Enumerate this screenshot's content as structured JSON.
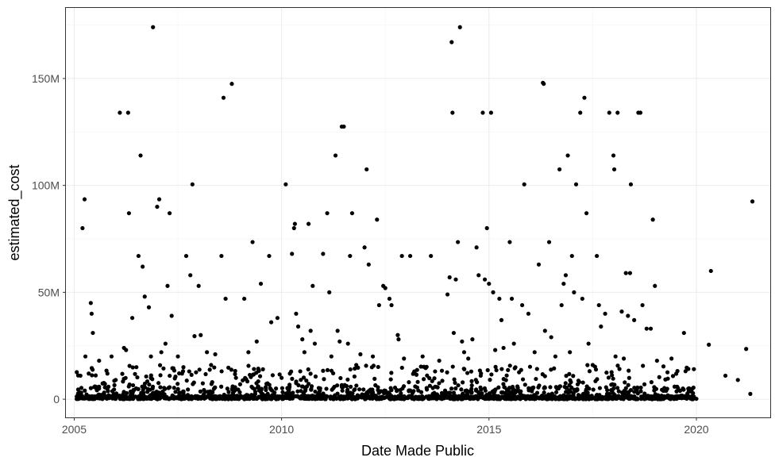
{
  "chart_data": {
    "type": "scatter",
    "xlabel": "Date Made Public",
    "ylabel": "estimated_cost",
    "xlim": [
      2004.8,
      2021.8
    ],
    "ylim": [
      -8500000,
      183000000
    ],
    "x_ticks": [
      2005,
      2010,
      2015,
      2020
    ],
    "x_tick_labels": [
      "2005",
      "2010",
      "2015",
      "2020"
    ],
    "y_ticks": [
      0,
      50000000,
      100000000,
      150000000
    ],
    "y_tick_labels": [
      "0",
      "50M",
      "100M",
      "150M"
    ],
    "grid": true,
    "legend": "none",
    "point_color": "#000000",
    "points": [
      [
        2005.1,
        2000000
      ],
      [
        2005.15,
        11000000
      ],
      [
        2005.2,
        80000000
      ],
      [
        2005.25,
        93500000
      ],
      [
        2005.27,
        20000000
      ],
      [
        2005.35,
        12000000
      ],
      [
        2005.4,
        45000000
      ],
      [
        2005.42,
        40000000
      ],
      [
        2005.45,
        31000000
      ],
      [
        2005.5,
        6000000
      ],
      [
        2005.6,
        18000000
      ],
      [
        2005.8,
        12000000
      ],
      [
        2005.9,
        20000000
      ],
      [
        2006.0,
        9000000
      ],
      [
        2006.1,
        134000000
      ],
      [
        2006.2,
        24000000
      ],
      [
        2006.25,
        23000000
      ],
      [
        2006.3,
        134000000
      ],
      [
        2006.32,
        87000000
      ],
      [
        2006.4,
        38000000
      ],
      [
        2006.5,
        15000000
      ],
      [
        2006.55,
        67000000
      ],
      [
        2006.6,
        114000000
      ],
      [
        2006.65,
        62000000
      ],
      [
        2006.7,
        48000000
      ],
      [
        2006.8,
        43000000
      ],
      [
        2006.85,
        20000000
      ],
      [
        2006.9,
        174000000
      ],
      [
        2007.0,
        90000000
      ],
      [
        2007.05,
        93500000
      ],
      [
        2007.1,
        22000000
      ],
      [
        2007.2,
        26000000
      ],
      [
        2007.25,
        53000000
      ],
      [
        2007.3,
        87000000
      ],
      [
        2007.35,
        39000000
      ],
      [
        2007.5,
        20000000
      ],
      [
        2007.6,
        12000000
      ],
      [
        2007.7,
        67000000
      ],
      [
        2007.8,
        58000000
      ],
      [
        2007.85,
        100500000
      ],
      [
        2007.9,
        29500000
      ],
      [
        2008.0,
        53000000
      ],
      [
        2008.05,
        30000000
      ],
      [
        2008.2,
        22000000
      ],
      [
        2008.3,
        16000000
      ],
      [
        2008.4,
        21000000
      ],
      [
        2008.55,
        67000000
      ],
      [
        2008.6,
        141000000
      ],
      [
        2008.65,
        47000000
      ],
      [
        2008.8,
        147500000
      ],
      [
        2008.9,
        10000000
      ],
      [
        2009.0,
        7000000
      ],
      [
        2009.1,
        47000000
      ],
      [
        2009.2,
        22000000
      ],
      [
        2009.3,
        73500000
      ],
      [
        2009.4,
        27000000
      ],
      [
        2009.5,
        54000000
      ],
      [
        2009.55,
        14000000
      ],
      [
        2009.7,
        67000000
      ],
      [
        2009.75,
        36000000
      ],
      [
        2009.9,
        38000000
      ],
      [
        2010.0,
        10000000
      ],
      [
        2010.1,
        100500000
      ],
      [
        2010.2,
        12000000
      ],
      [
        2010.25,
        68000000
      ],
      [
        2010.3,
        80000000
      ],
      [
        2010.32,
        82000000
      ],
      [
        2010.35,
        40000000
      ],
      [
        2010.4,
        34000000
      ],
      [
        2010.5,
        28000000
      ],
      [
        2010.55,
        22000000
      ],
      [
        2010.65,
        82000000
      ],
      [
        2010.7,
        32000000
      ],
      [
        2010.75,
        53000000
      ],
      [
        2010.8,
        26000000
      ],
      [
        2011.0,
        68000000
      ],
      [
        2011.1,
        87000000
      ],
      [
        2011.15,
        50000000
      ],
      [
        2011.2,
        20000000
      ],
      [
        2011.3,
        114000000
      ],
      [
        2011.35,
        32000000
      ],
      [
        2011.4,
        27000000
      ],
      [
        2011.45,
        127500000
      ],
      [
        2011.5,
        127500000
      ],
      [
        2011.6,
        26000000
      ],
      [
        2011.65,
        67000000
      ],
      [
        2011.7,
        87000000
      ],
      [
        2011.8,
        16000000
      ],
      [
        2011.9,
        21000000
      ],
      [
        2012.0,
        71000000
      ],
      [
        2012.05,
        107500000
      ],
      [
        2012.1,
        63000000
      ],
      [
        2012.2,
        20000000
      ],
      [
        2012.3,
        84000000
      ],
      [
        2012.35,
        44000000
      ],
      [
        2012.45,
        53000000
      ],
      [
        2012.5,
        52000000
      ],
      [
        2012.6,
        47000000
      ],
      [
        2012.65,
        44000000
      ],
      [
        2012.8,
        30000000
      ],
      [
        2012.82,
        28000000
      ],
      [
        2012.9,
        67000000
      ],
      [
        2012.95,
        19000000
      ],
      [
        2013.1,
        67000000
      ],
      [
        2013.2,
        13000000
      ],
      [
        2013.4,
        20000000
      ],
      [
        2013.6,
        67000000
      ],
      [
        2013.7,
        13000000
      ],
      [
        2013.8,
        18000000
      ],
      [
        2014.0,
        49000000
      ],
      [
        2014.05,
        57000000
      ],
      [
        2014.1,
        167000000
      ],
      [
        2014.12,
        134000000
      ],
      [
        2014.15,
        31000000
      ],
      [
        2014.2,
        56000000
      ],
      [
        2014.25,
        73500000
      ],
      [
        2014.3,
        174000000
      ],
      [
        2014.35,
        27000000
      ],
      [
        2014.4,
        22000000
      ],
      [
        2014.5,
        19000000
      ],
      [
        2014.6,
        28000000
      ],
      [
        2014.7,
        71000000
      ],
      [
        2014.75,
        58000000
      ],
      [
        2014.8,
        11000000
      ],
      [
        2014.85,
        134000000
      ],
      [
        2014.9,
        56000000
      ],
      [
        2014.95,
        80000000
      ],
      [
        2015.0,
        54000000
      ],
      [
        2015.05,
        134000000
      ],
      [
        2015.1,
        50000000
      ],
      [
        2015.15,
        23000000
      ],
      [
        2015.25,
        47000000
      ],
      [
        2015.3,
        37000000
      ],
      [
        2015.35,
        24000000
      ],
      [
        2015.5,
        73500000
      ],
      [
        2015.55,
        47000000
      ],
      [
        2015.6,
        26000000
      ],
      [
        2015.8,
        44000000
      ],
      [
        2015.85,
        100500000
      ],
      [
        2015.95,
        40000000
      ],
      [
        2016.1,
        22000000
      ],
      [
        2016.2,
        63000000
      ],
      [
        2016.3,
        148000000
      ],
      [
        2016.32,
        147500000
      ],
      [
        2016.35,
        32000000
      ],
      [
        2016.45,
        73500000
      ],
      [
        2016.5,
        29000000
      ],
      [
        2016.6,
        20000000
      ],
      [
        2016.7,
        107500000
      ],
      [
        2016.75,
        44000000
      ],
      [
        2016.8,
        54000000
      ],
      [
        2016.85,
        58000000
      ],
      [
        2016.9,
        114000000
      ],
      [
        2016.95,
        22000000
      ],
      [
        2017.0,
        67000000
      ],
      [
        2017.05,
        50000000
      ],
      [
        2017.1,
        100500000
      ],
      [
        2017.2,
        134000000
      ],
      [
        2017.25,
        47000000
      ],
      [
        2017.3,
        141000000
      ],
      [
        2017.35,
        87000000
      ],
      [
        2017.4,
        26000000
      ],
      [
        2017.5,
        16000000
      ],
      [
        2017.6,
        67000000
      ],
      [
        2017.65,
        44000000
      ],
      [
        2017.7,
        34000000
      ],
      [
        2017.8,
        40000000
      ],
      [
        2017.9,
        134000000
      ],
      [
        2018.0,
        114000000
      ],
      [
        2018.02,
        107500000
      ],
      [
        2018.05,
        20000000
      ],
      [
        2018.1,
        134000000
      ],
      [
        2018.2,
        41000000
      ],
      [
        2018.25,
        19000000
      ],
      [
        2018.3,
        59000000
      ],
      [
        2018.35,
        39000000
      ],
      [
        2018.4,
        59000000
      ],
      [
        2018.42,
        100500000
      ],
      [
        2018.5,
        37000000
      ],
      [
        2018.6,
        134000000
      ],
      [
        2018.65,
        134000000
      ],
      [
        2018.7,
        44000000
      ],
      [
        2018.8,
        33000000
      ],
      [
        2018.9,
        33000000
      ],
      [
        2018.95,
        84000000
      ],
      [
        2019.0,
        53000000
      ],
      [
        2019.05,
        18000000
      ],
      [
        2019.4,
        19000000
      ],
      [
        2019.7,
        31000000
      ],
      [
        2019.8,
        1000000
      ],
      [
        2019.9,
        500000
      ],
      [
        2020.0,
        200000
      ],
      [
        2020.3,
        25500000
      ],
      [
        2020.35,
        60000000
      ],
      [
        2020.7,
        11000000
      ],
      [
        2021.0,
        9000000
      ],
      [
        2021.2,
        23500000
      ],
      [
        2021.3,
        2500000
      ],
      [
        2021.35,
        92500000
      ]
    ]
  }
}
